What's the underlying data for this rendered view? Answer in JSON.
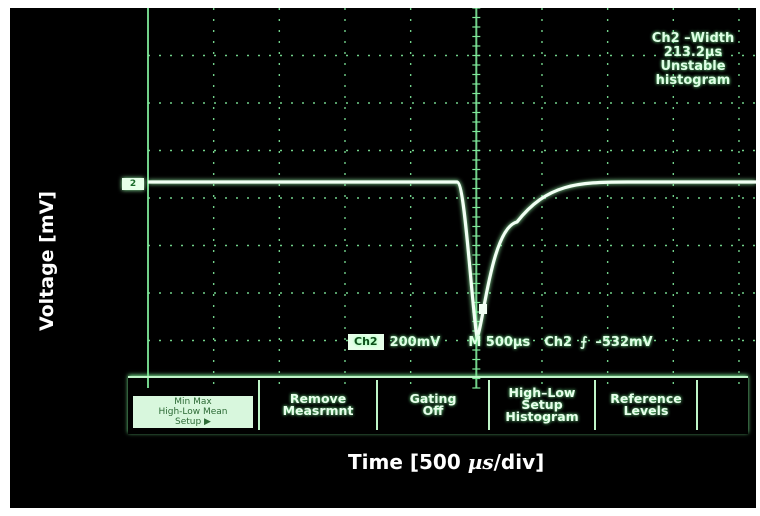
{
  "screen": {
    "measurement": {
      "line1": "Ch2 –Width",
      "line2": "213.2µs",
      "line3": "Unstable",
      "line4": "histogram"
    },
    "channel_marker": "2",
    "status_bar": {
      "channel_badge": "Ch2",
      "volts_per_div": "200mV",
      "horizontal": "M 500µs",
      "trigger_source": "Ch2",
      "trigger_icon": "⨍",
      "trigger_level": "–532mV"
    },
    "axis_labels": {
      "x": "Time [500 ",
      "x_mu": "µs",
      "x_tail": "/div]",
      "y": "Voltage [mV]"
    },
    "menu": [
      {
        "lines": [
          "Min Max",
          "High-Low Mean",
          "Setup ▶"
        ],
        "selected": true
      },
      {
        "lines": [
          "Remove",
          "Measrmnt"
        ]
      },
      {
        "lines": [
          "Gating",
          "Off"
        ]
      },
      {
        "lines": [
          "High–Low",
          "Setup",
          "Histogram"
        ]
      },
      {
        "lines": [
          "Reference",
          "Levels"
        ]
      }
    ],
    "colors": {
      "trace": "#f2fff4",
      "grid": "#7fe89a",
      "background": "#000000"
    }
  }
}
